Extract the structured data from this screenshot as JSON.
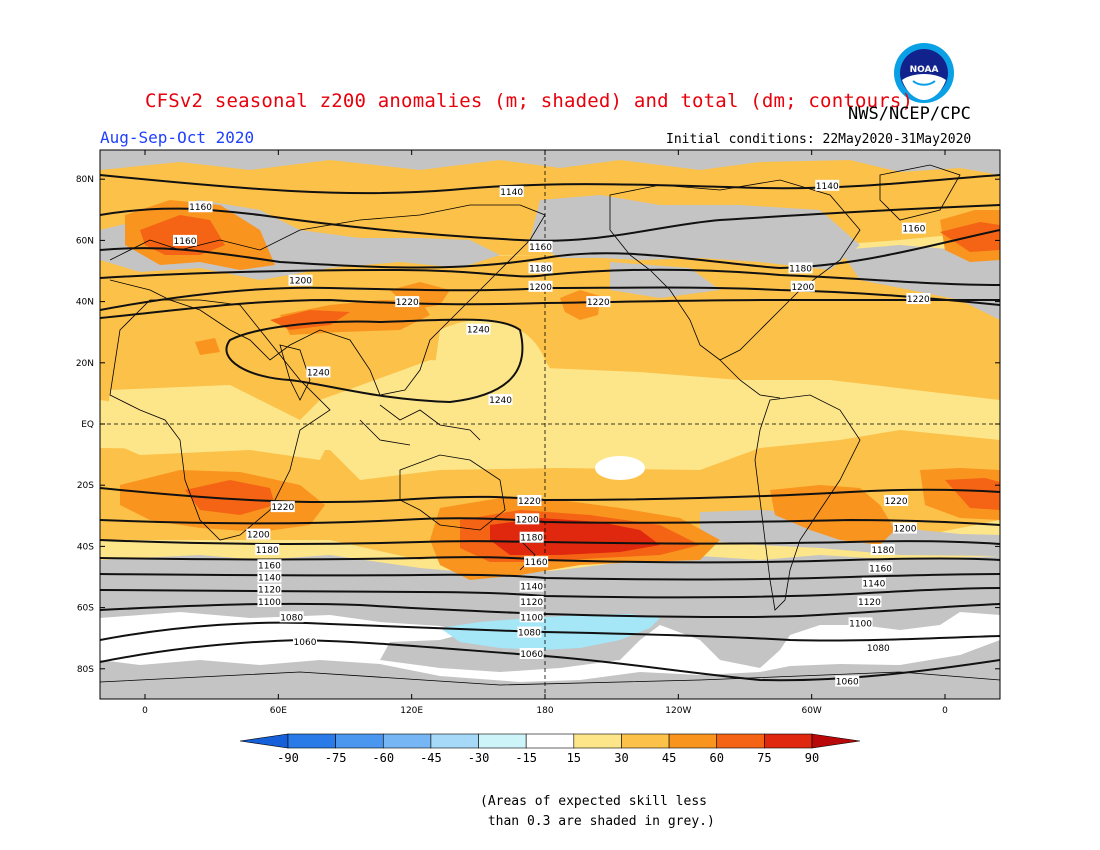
{
  "title": "CFSv2 seasonal z200 anomalies (m; shaded) and total (dm; contours)",
  "org": "NWS/NCEP/CPC",
  "period": "Aug-Sep-Oct 2020",
  "initial_conditions": "Initial conditions: 22May2020-31May2020",
  "logo_text": "NOAA",
  "latitude_ticks": [
    "80N",
    "60N",
    "40N",
    "20N",
    "EQ",
    "20S",
    "40S",
    "60S",
    "80S"
  ],
  "longitude_ticks": [
    "0",
    "60E",
    "120E",
    "180",
    "120W",
    "60W",
    "0"
  ],
  "colorbar": {
    "labels": [
      "-90",
      "-75",
      "-60",
      "-45",
      "-30",
      "-15",
      "15",
      "30",
      "45",
      "60",
      "75",
      "90"
    ],
    "colors": [
      "#1560d8",
      "#2a7be8",
      "#4b96ef",
      "#77b6f4",
      "#a5d9f7",
      "#cdf4f9",
      "#ffffff",
      "#fde58a",
      "#fcc148",
      "#f9941e",
      "#f46414",
      "#e0280e",
      "#b8080a"
    ]
  },
  "note": "(Areas of expected skill less\n than 0.3 are shaded in grey.)",
  "contour_labels": [
    {
      "text": "1140",
      "lon": 165,
      "lat": 76
    },
    {
      "text": "1140",
      "lon": 307,
      "lat": 78
    },
    {
      "text": "1160",
      "lon": 25,
      "lat": 71
    },
    {
      "text": "1160",
      "lon": 18,
      "lat": 60
    },
    {
      "text": "1160",
      "lon": 178,
      "lat": 58
    },
    {
      "text": "1160",
      "lon": 346,
      "lat": 64
    },
    {
      "text": "1180",
      "lon": 178,
      "lat": 51
    },
    {
      "text": "1180",
      "lon": 295,
      "lat": 51
    },
    {
      "text": "1200",
      "lon": 70,
      "lat": 47
    },
    {
      "text": "1200",
      "lon": 178,
      "lat": 45
    },
    {
      "text": "1200",
      "lon": 296,
      "lat": 45
    },
    {
      "text": "1220",
      "lon": 118,
      "lat": 40
    },
    {
      "text": "1220",
      "lon": 204,
      "lat": 40
    },
    {
      "text": "1220",
      "lon": 348,
      "lat": 41
    },
    {
      "text": "1240",
      "lon": 150,
      "lat": 31
    },
    {
      "text": "1240",
      "lon": 78,
      "lat": 17
    },
    {
      "text": "1240",
      "lon": 160,
      "lat": 8
    },
    {
      "text": "1220",
      "lon": 62,
      "lat": -27
    },
    {
      "text": "1220",
      "lon": 173,
      "lat": -25
    },
    {
      "text": "1220",
      "lon": 338,
      "lat": -25
    },
    {
      "text": "1200",
      "lon": 51,
      "lat": -36
    },
    {
      "text": "1200",
      "lon": 172,
      "lat": -31
    },
    {
      "text": "1200",
      "lon": 342,
      "lat": -34
    },
    {
      "text": "1180",
      "lon": 55,
      "lat": -41
    },
    {
      "text": "1180",
      "lon": 174,
      "lat": -37
    },
    {
      "text": "1180",
      "lon": 332,
      "lat": -41
    },
    {
      "text": "1160",
      "lon": 56,
      "lat": -46
    },
    {
      "text": "1160",
      "lon": 176,
      "lat": -45
    },
    {
      "text": "1160",
      "lon": 331,
      "lat": -47
    },
    {
      "text": "1140",
      "lon": 56,
      "lat": -50
    },
    {
      "text": "1140",
      "lon": 174,
      "lat": -53
    },
    {
      "text": "1140",
      "lon": 328,
      "lat": -52
    },
    {
      "text": "1120",
      "lon": 56,
      "lat": -54
    },
    {
      "text": "1120",
      "lon": 174,
      "lat": -58
    },
    {
      "text": "1120",
      "lon": 326,
      "lat": -58
    },
    {
      "text": "1100",
      "lon": 56,
      "lat": -58
    },
    {
      "text": "1100",
      "lon": 174,
      "lat": -63
    },
    {
      "text": "1100",
      "lon": 322,
      "lat": -65
    },
    {
      "text": "1080",
      "lon": 66,
      "lat": -63
    },
    {
      "text": "1080",
      "lon": 173,
      "lat": -68
    },
    {
      "text": "1080",
      "lon": 330,
      "lat": -73
    },
    {
      "text": "1060",
      "lon": 72,
      "lat": -71
    },
    {
      "text": "1060",
      "lon": 174,
      "lat": -75
    },
    {
      "text": "1060",
      "lon": 316,
      "lat": -84
    }
  ]
}
